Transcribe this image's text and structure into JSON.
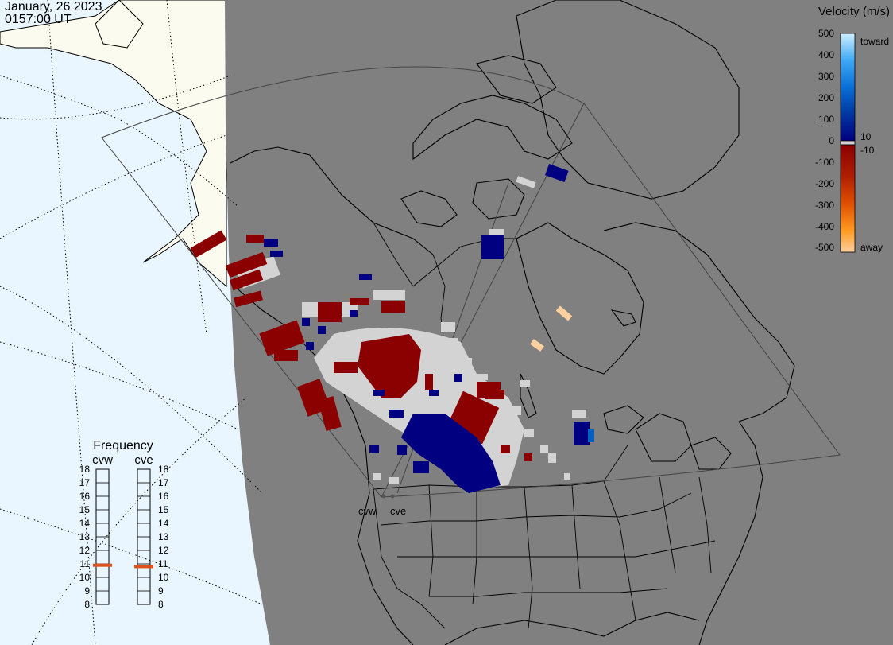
{
  "header": {
    "date": "January, 26 2023",
    "time": "0157:00 UT"
  },
  "legend": {
    "title": "Velocity (m/s)",
    "ticks": [
      "500",
      "400",
      "300",
      "200",
      "100",
      "0",
      "-100",
      "-200",
      "-300",
      "-400",
      "-500"
    ],
    "toward_label": "toward",
    "away_label": "away",
    "pos_threshold": "10",
    "neg_threshold": "-10",
    "colors": {
      "toward_high": "#cfeeff",
      "toward_low": "#000080",
      "away_low": "#8b0000",
      "away_high": "#ffd0a0",
      "ground_scatter": "#d3d3d3",
      "unilluminated": "#808080",
      "land": "#fbfbef",
      "ocean": "#eaf6ff"
    }
  },
  "frequency": {
    "title": "Frequency",
    "radars": [
      "cvw",
      "cve"
    ],
    "scale": [
      "18",
      "17",
      "16",
      "15",
      "14",
      "13",
      "12",
      "11",
      "10",
      "9",
      "8"
    ],
    "cvw_mhz": 10.9,
    "cve_mhz": 10.8,
    "marker_color": "#e0501a"
  },
  "radars": {
    "cvw_label": "cvw",
    "cve_label": "cve"
  }
}
